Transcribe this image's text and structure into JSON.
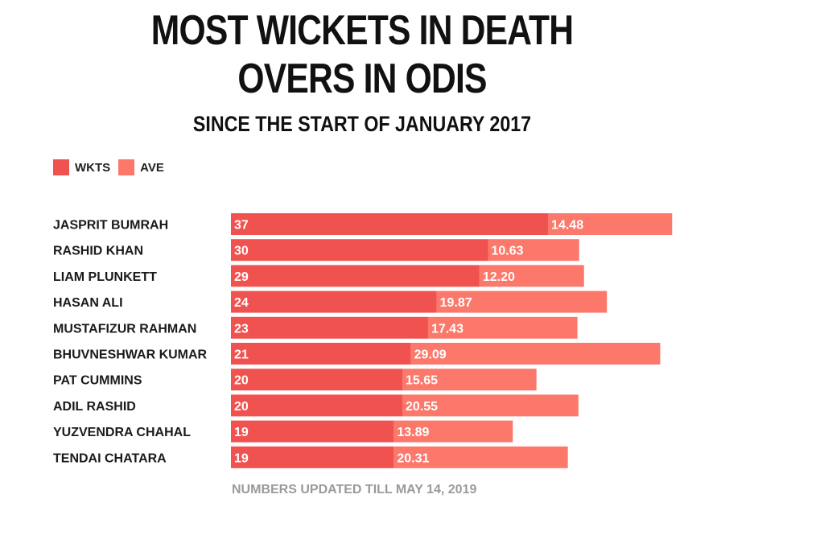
{
  "chart_data": {
    "type": "bar",
    "title": "MOST WICKETS IN DEATH OVERS IN ODIS",
    "subtitle": "SINCE THE START OF JANUARY 2017",
    "footnote": "NUMBERS UPDATED TILL MAY 14, 2019",
    "legend": [
      "WKTS",
      "AVE"
    ],
    "categories": [
      "JASPRIT BUMRAH",
      "RASHID KHAN",
      "LIAM PLUNKETT",
      "HASAN ALI",
      "MUSTAFIZUR RAHMAN",
      "BHUVNESHWAR KUMAR",
      "PAT CUMMINS",
      "ADIL RASHID",
      "YUZVENDRA CHAHAL",
      "TENDAI CHATARA"
    ],
    "series": [
      {
        "name": "WKTS",
        "values": [
          37,
          30,
          29,
          24,
          23,
          21,
          20,
          20,
          19,
          19
        ],
        "labels": [
          "37",
          "30",
          "29",
          "24",
          "23",
          "21",
          "20",
          "20",
          "19",
          "19"
        ],
        "color": "#f0524f"
      },
      {
        "name": "AVE",
        "values": [
          14.48,
          10.63,
          12.2,
          19.87,
          17.43,
          29.09,
          15.65,
          20.55,
          13.89,
          20.31
        ],
        "labels": [
          "14.48",
          "10.63",
          "12.20",
          "19.87",
          "17.43",
          "29.09",
          "15.65",
          "20.55",
          "13.89",
          "20.31"
        ],
        "color": "#fb786b"
      }
    ]
  }
}
